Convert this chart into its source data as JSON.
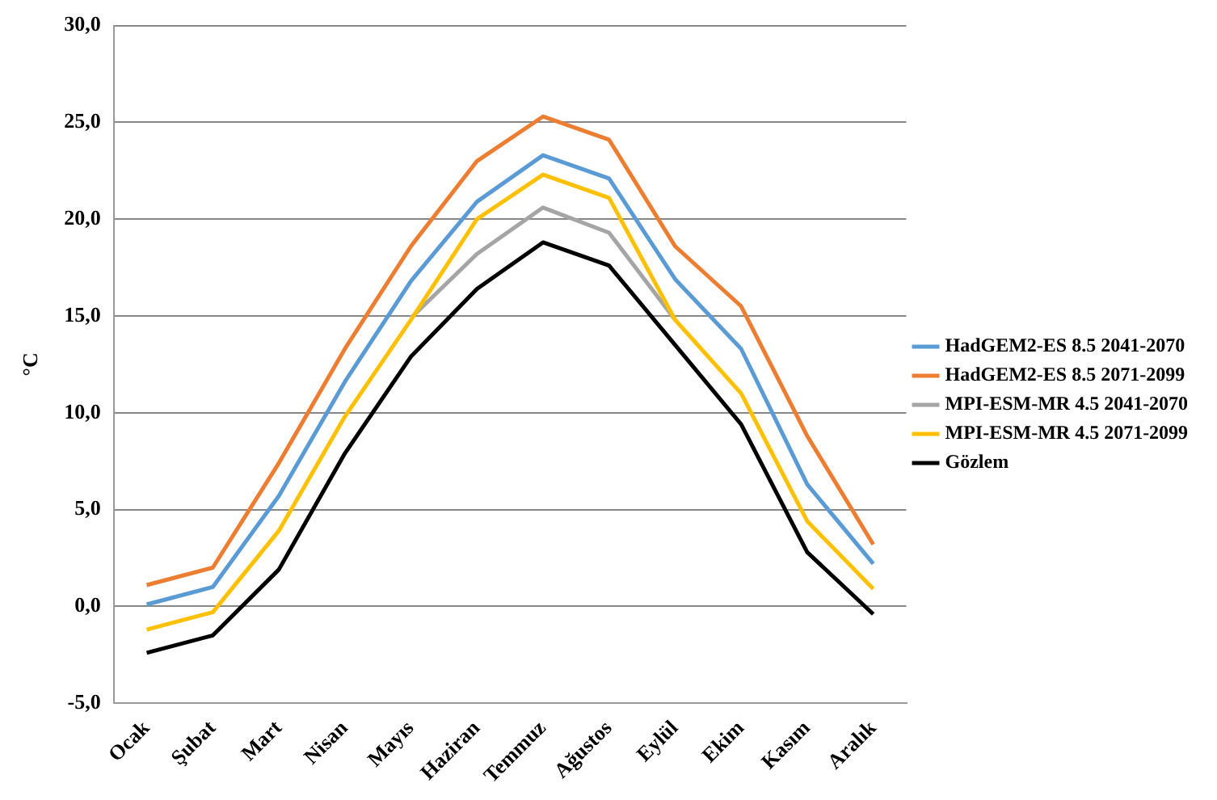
{
  "chart_data": {
    "type": "line",
    "ylabel": "°C",
    "categories": [
      "Ocak",
      "Şubat",
      "Mart",
      "Nisan",
      "Mayıs",
      "Haziran",
      "Temmuz",
      "Ağustos",
      "Eylül",
      "Ekim",
      "Kasım",
      "Aralık"
    ],
    "series": [
      {
        "name": "HadGEM2-ES 8.5 2041-2070",
        "color": "#5b9bd5",
        "values": [
          0.1,
          1.0,
          5.7,
          11.6,
          16.8,
          20.9,
          23.3,
          22.1,
          16.9,
          13.3,
          6.3,
          2.2
        ]
      },
      {
        "name": "HadGEM2-ES 8.5 2071-2099",
        "color": "#ed7d31",
        "values": [
          1.1,
          2.0,
          7.4,
          13.3,
          18.6,
          23.0,
          25.3,
          24.1,
          18.6,
          15.5,
          8.8,
          3.2
        ]
      },
      {
        "name": "MPI-ESM-MR 4.5 2041-2070",
        "color": "#a5a5a5",
        "values": [
          null,
          null,
          null,
          null,
          14.9,
          18.2,
          20.6,
          19.3,
          14.8,
          null,
          null,
          null
        ]
      },
      {
        "name": "MPI-ESM-MR 4.5 2071-2099",
        "color": "#ffc000",
        "values": [
          -1.2,
          -0.3,
          3.9,
          9.8,
          14.8,
          20.0,
          22.3,
          21.1,
          14.8,
          11.0,
          4.4,
          0.9
        ]
      },
      {
        "name": "Gözlem",
        "color": "#000000",
        "values": [
          -2.4,
          -1.5,
          1.9,
          7.9,
          12.9,
          16.4,
          18.8,
          17.6,
          13.5,
          9.4,
          2.8,
          -0.4
        ]
      }
    ],
    "ylim": [
      -5,
      30
    ],
    "yticks": [
      {
        "value": -5,
        "label": "-5,0"
      },
      {
        "value": 0,
        "label": "0,0"
      },
      {
        "value": 5,
        "label": "5,0"
      },
      {
        "value": 10,
        "label": "10,0"
      },
      {
        "value": 15,
        "label": "15,0"
      },
      {
        "value": 20,
        "label": "20,0"
      },
      {
        "value": 25,
        "label": "25,0"
      },
      {
        "value": 30,
        "label": "30,0"
      }
    ],
    "grid": "y",
    "legend": "right",
    "marker": "none",
    "line_style": "solid"
  }
}
